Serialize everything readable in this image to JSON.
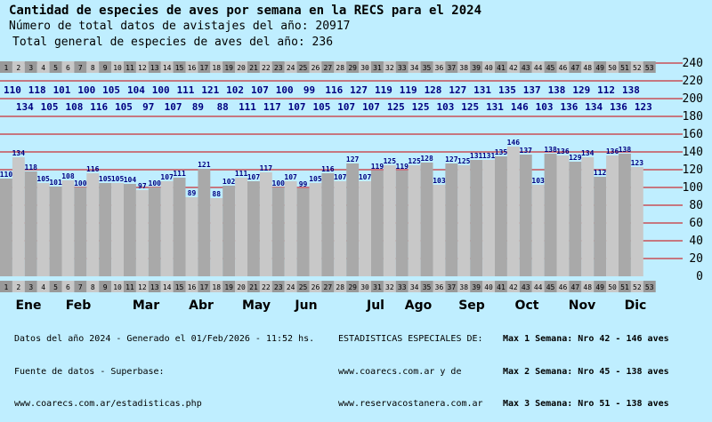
{
  "header": {
    "title": "Cantidad de especies de aves por semana en la RECS para el 2024",
    "line1": "Número de total datos de avistajes del año: 20917",
    "line2": "Total general de especies de aves del año: 236"
  },
  "chart_data": {
    "type": "bar",
    "weeks": [
      "1",
      "2",
      "3",
      "4",
      "5",
      "6",
      "7",
      "8",
      "9",
      "10",
      "11",
      "12",
      "13",
      "14",
      "15",
      "16",
      "17",
      "18",
      "19",
      "20",
      "21",
      "22",
      "23",
      "24",
      "25",
      "26",
      "27",
      "28",
      "29",
      "30",
      "31",
      "32",
      "33",
      "34",
      "35",
      "36",
      "37",
      "38",
      "39",
      "40",
      "41",
      "42",
      "43",
      "44",
      "45",
      "46",
      "47",
      "48",
      "49",
      "50",
      "51",
      "52",
      "53"
    ],
    "values": [
      110,
      134,
      118,
      105,
      101,
      108,
      100,
      116,
      105,
      105,
      104,
      97,
      100,
      107,
      111,
      89,
      121,
      88,
      102,
      111,
      107,
      117,
      100,
      107,
      99,
      105,
      116,
      107,
      127,
      107,
      119,
      125,
      119,
      125,
      128,
      103,
      127,
      125,
      131,
      131,
      135,
      146,
      137,
      103,
      138,
      136,
      129,
      134,
      112,
      136,
      138,
      123,
      null
    ],
    "month_labels": [
      "Ene",
      "Feb",
      "Mar",
      "Abr",
      "May",
      "Jun",
      "Jul",
      "Ago",
      "Sep",
      "Oct",
      "Nov",
      "Dic"
    ],
    "y_ticks": [
      0,
      20,
      40,
      60,
      80,
      100,
      120,
      140,
      160,
      180,
      200,
      220,
      240
    ],
    "ylim": [
      0,
      240
    ],
    "colors": {
      "bar_dark": "#a9a9a9",
      "bar_light": "#c8c8c8",
      "value_label": "#000080",
      "gridline": "#cc0000",
      "week_dark": "#999999",
      "week_light": "#c8c8c8"
    }
  },
  "footer": {
    "left": [
      "Datos del año 2024 - Generado el 01/Feb/2026 - 11:52 hs.",
      "Fuente de datos - Superbase:",
      "www.coarecs.com.ar/estadisticas.php"
    ],
    "middle": [
      "ESTADISTICAS ESPECIALES DE:",
      "www.coarecs.com.ar y de",
      "www.reservacostanera.com.ar"
    ],
    "right": [
      "Max 1 Semana: Nro 42 - 146 aves",
      "Max 2 Semana: Nro 45 - 138 aves",
      "Max 3 Semana: Nro 51 - 138 aves"
    ]
  }
}
